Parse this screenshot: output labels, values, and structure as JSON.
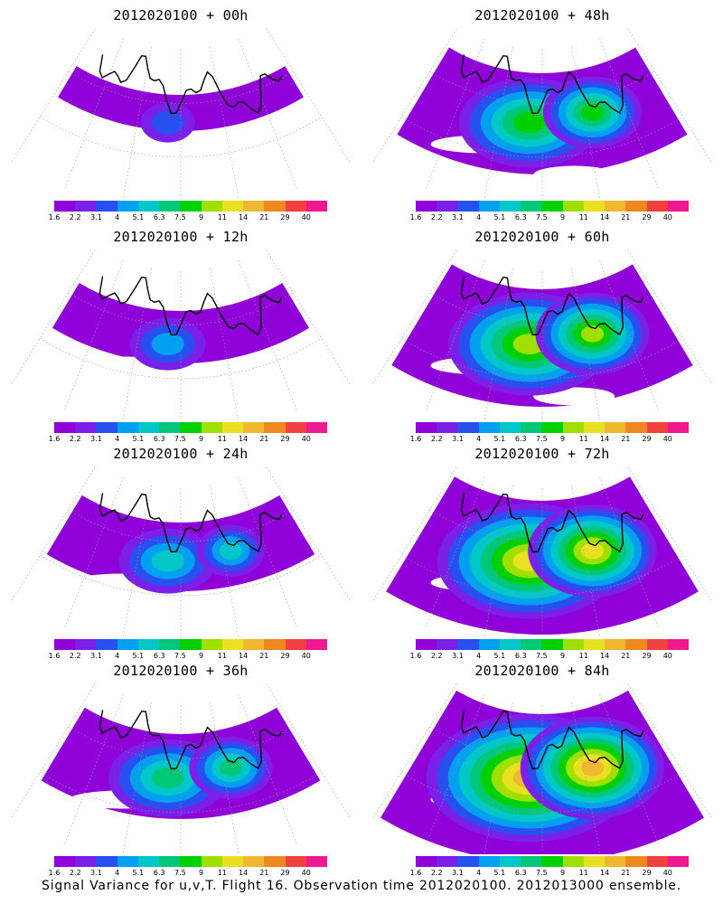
{
  "panels": [
    {
      "title": "2012020100  +  00h",
      "level": 0
    },
    {
      "title": "2012020100  +  48h",
      "level": 4
    },
    {
      "title": "2012020100  +  12h",
      "level": 1
    },
    {
      "title": "2012020100  +  60h",
      "level": 5
    },
    {
      "title": "2012020100  +  24h",
      "level": 2
    },
    {
      "title": "2012020100  +  72h",
      "level": 6
    },
    {
      "title": "2012020100  +  36h",
      "level": 3
    },
    {
      "title": "2012020100  +  84h",
      "level": 7
    }
  ],
  "colorbar": {
    "labels": [
      "1.6",
      "2.2",
      "3.1",
      "4",
      "5.1",
      "6.3",
      "7.5",
      "9",
      "11",
      "14",
      "21",
      "29",
      "40"
    ],
    "colors": [
      "#9000d8",
      "#7a20e8",
      "#2850f0",
      "#00a0f0",
      "#00c8c8",
      "#00c878",
      "#00d000",
      "#a0e000",
      "#e8e020",
      "#f0b830",
      "#f08820",
      "#f04040",
      "#f01890"
    ]
  },
  "caption": "Signal Variance for u,v,T. Flight 16. Observation time 2012020100. 2012013000 ensemble.",
  "colors": {
    "land_outline": "#000000",
    "graticule": "#999999",
    "background": "#ffffff"
  }
}
